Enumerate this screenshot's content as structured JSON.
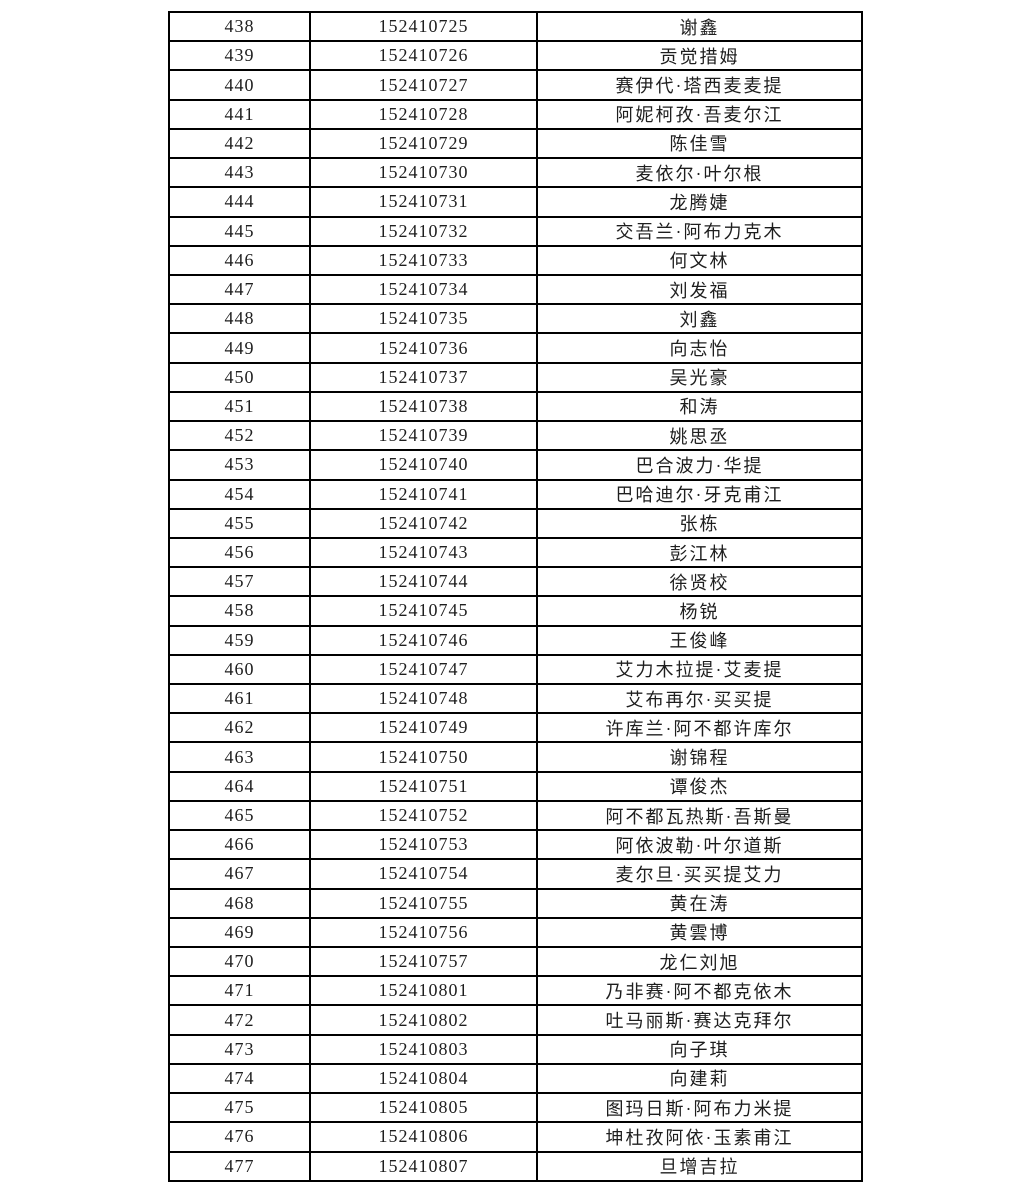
{
  "colors": {
    "background": "#ffffff",
    "border": "#000000",
    "text": "#1e1e1e"
  },
  "table": {
    "rows": [
      {
        "no": "438",
        "id": "152410725",
        "name": "谢鑫"
      },
      {
        "no": "439",
        "id": "152410726",
        "name": "贡觉措姆"
      },
      {
        "no": "440",
        "id": "152410727",
        "name": "赛伊代·塔西麦麦提"
      },
      {
        "no": "441",
        "id": "152410728",
        "name": "阿妮柯孜·吾麦尔江"
      },
      {
        "no": "442",
        "id": "152410729",
        "name": "陈佳雪"
      },
      {
        "no": "443",
        "id": "152410730",
        "name": "麦依尔·叶尔根"
      },
      {
        "no": "444",
        "id": "152410731",
        "name": "龙腾婕"
      },
      {
        "no": "445",
        "id": "152410732",
        "name": "交吾兰·阿布力克木"
      },
      {
        "no": "446",
        "id": "152410733",
        "name": "何文林"
      },
      {
        "no": "447",
        "id": "152410734",
        "name": "刘发福"
      },
      {
        "no": "448",
        "id": "152410735",
        "name": "刘鑫"
      },
      {
        "no": "449",
        "id": "152410736",
        "name": "向志怡"
      },
      {
        "no": "450",
        "id": "152410737",
        "name": "吴光豪"
      },
      {
        "no": "451",
        "id": "152410738",
        "name": "和涛"
      },
      {
        "no": "452",
        "id": "152410739",
        "name": "姚思丞"
      },
      {
        "no": "453",
        "id": "152410740",
        "name": "巴合波力·华提"
      },
      {
        "no": "454",
        "id": "152410741",
        "name": "巴哈迪尔·牙克甫江"
      },
      {
        "no": "455",
        "id": "152410742",
        "name": "张栋"
      },
      {
        "no": "456",
        "id": "152410743",
        "name": "彭江林"
      },
      {
        "no": "457",
        "id": "152410744",
        "name": "徐贤校"
      },
      {
        "no": "458",
        "id": "152410745",
        "name": "杨锐"
      },
      {
        "no": "459",
        "id": "152410746",
        "name": "王俊峰"
      },
      {
        "no": "460",
        "id": "152410747",
        "name": "艾力木拉提·艾麦提"
      },
      {
        "no": "461",
        "id": "152410748",
        "name": "艾布再尔·买买提"
      },
      {
        "no": "462",
        "id": "152410749",
        "name": "许库兰·阿不都许库尔"
      },
      {
        "no": "463",
        "id": "152410750",
        "name": "谢锦程"
      },
      {
        "no": "464",
        "id": "152410751",
        "name": "谭俊杰"
      },
      {
        "no": "465",
        "id": "152410752",
        "name": "阿不都瓦热斯·吾斯曼"
      },
      {
        "no": "466",
        "id": "152410753",
        "name": "阿依波勒·叶尔道斯"
      },
      {
        "no": "467",
        "id": "152410754",
        "name": "麦尔旦·买买提艾力"
      },
      {
        "no": "468",
        "id": "152410755",
        "name": "黄在涛"
      },
      {
        "no": "469",
        "id": "152410756",
        "name": "黄雲博"
      },
      {
        "no": "470",
        "id": "152410757",
        "name": "龙仁刘旭"
      },
      {
        "no": "471",
        "id": "152410801",
        "name": "乃非赛·阿不都克依木"
      },
      {
        "no": "472",
        "id": "152410802",
        "name": "吐马丽斯·赛达克拜尔"
      },
      {
        "no": "473",
        "id": "152410803",
        "name": "向子琪"
      },
      {
        "no": "474",
        "id": "152410804",
        "name": "向建莉"
      },
      {
        "no": "475",
        "id": "152410805",
        "name": "图玛日斯·阿布力米提"
      },
      {
        "no": "476",
        "id": "152410806",
        "name": "坤杜孜阿依·玉素甫江"
      },
      {
        "no": "477",
        "id": "152410807",
        "name": "旦增吉拉"
      }
    ]
  }
}
